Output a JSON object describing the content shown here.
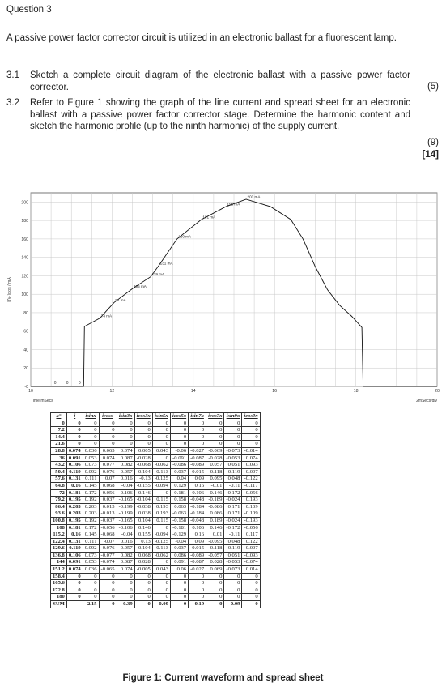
{
  "question_title": "Question 3",
  "intro": "A passive power factor corrector circuit is utilized in an electronic ballast for a fluorescent lamp.",
  "items": [
    {
      "num": "3.1",
      "text": "Sketch a complete circuit diagram of the electronic ballast with a passive power factor corrector.",
      "marks": "(5)"
    },
    {
      "num": "3.2",
      "text": "Refer to Figure 1 showing the graph of the line current and spread sheet for an electronic ballast with a passive power factor corrector stage.  Determine the harmonic content and sketch the harmonic profile (up to the ninth harmonic) of the supply current.",
      "marks": "(9)"
    }
  ],
  "total_marks": "[14]",
  "chart_data": {
    "type": "line",
    "ylabel": "I(V·)pos / mA",
    "xlabel_left": "Time/mSecs",
    "xlabel_right": "2mSecs/div",
    "x_ticks": [
      "10",
      "12",
      "14",
      "16",
      "18",
      "20"
    ],
    "y_ticks": [
      "-0",
      "20",
      "40",
      "60",
      "80",
      "100",
      "120",
      "140",
      "160",
      "180",
      "200"
    ],
    "xlim": [
      10,
      20
    ],
    "ylim": [
      0,
      210
    ],
    "grid": true,
    "zero_labels": [
      "0",
      "0",
      "0"
    ],
    "points": [
      {
        "x": 11.3,
        "y": 0
      },
      {
        "x": 11.32,
        "y": 65
      },
      {
        "x": 11.7,
        "y": 74
      },
      {
        "x": 12.05,
        "y": 91
      },
      {
        "x": 12.5,
        "y": 106
      },
      {
        "x": 12.95,
        "y": 119
      },
      {
        "x": 13.15,
        "y": 131
      },
      {
        "x": 13.6,
        "y": 160
      },
      {
        "x": 14.2,
        "y": 181
      },
      {
        "x": 14.8,
        "y": 195
      },
      {
        "x": 15.3,
        "y": 203
      },
      {
        "x": 15.9,
        "y": 195
      },
      {
        "x": 16.4,
        "y": 181
      },
      {
        "x": 16.7,
        "y": 160
      },
      {
        "x": 17.0,
        "y": 130
      },
      {
        "x": 17.3,
        "y": 105
      },
      {
        "x": 17.6,
        "y": 88
      },
      {
        "x": 17.9,
        "y": 76
      },
      {
        "x": 18.15,
        "y": 64
      },
      {
        "x": 18.18,
        "y": 0
      }
    ],
    "annotations": [
      {
        "x": 15.3,
        "y": 203,
        "label": "203 mA"
      },
      {
        "x": 14.8,
        "y": 195,
        "label": "195 mA"
      },
      {
        "x": 14.2,
        "y": 181,
        "label": "181 mA"
      },
      {
        "x": 13.6,
        "y": 160,
        "label": "160 mA"
      },
      {
        "x": 13.15,
        "y": 131,
        "label": "131 mA"
      },
      {
        "x": 12.95,
        "y": 119,
        "label": "119 mA"
      },
      {
        "x": 12.5,
        "y": 106,
        "label": "106 mA"
      },
      {
        "x": 12.05,
        "y": 91,
        "label": "91 mA"
      },
      {
        "x": 11.7,
        "y": 74,
        "label": "74 mA"
      }
    ]
  },
  "table": {
    "headers": [
      "x°",
      "i",
      "isinx",
      "icosx",
      "isin3x",
      "icos3x",
      "isin5x",
      "icos5x",
      "isin7x",
      "icos7x",
      "isin9x",
      "icos9x"
    ],
    "rows": [
      [
        "0",
        "0",
        "0",
        "0",
        "0",
        "0",
        "0",
        "0",
        "0",
        "0",
        "0",
        "0"
      ],
      [
        "7.2",
        "0",
        "0",
        "0",
        "0",
        "0",
        "0",
        "0",
        "0",
        "0",
        "0",
        "0"
      ],
      [
        "14.4",
        "0",
        "0",
        "0",
        "0",
        "0",
        "0",
        "0",
        "0",
        "0",
        "0",
        "0"
      ],
      [
        "21.6",
        "0",
        "0",
        "0",
        "0",
        "0",
        "0",
        "0",
        "0",
        "0",
        "0",
        "0"
      ],
      [
        "28.8",
        "0.074",
        "0.036",
        "0.065",
        "0.074",
        "0.005",
        "0.043",
        "-0.06",
        "-0.027",
        "-0.069",
        "-0.073",
        "-0.014"
      ],
      [
        "36",
        "0.091",
        "0.053",
        "0.074",
        "0.087",
        "-0.028",
        "0",
        "-0.091",
        "-0.087",
        "-0.028",
        "-0.053",
        "0.074"
      ],
      [
        "43.2",
        "0.106",
        "0.073",
        "0.077",
        "0.082",
        "-0.068",
        "-0.062",
        "-0.086",
        "-0.089",
        "0.057",
        "0.051",
        "0.093"
      ],
      [
        "50.4",
        "0.119",
        "0.092",
        "0.076",
        "0.057",
        "-0.104",
        "-0.113",
        "-0.037",
        "-0.015",
        "0.118",
        "0.119",
        "-0.007"
      ],
      [
        "57.6",
        "0.131",
        "0.111",
        "0.07",
        "0.016",
        "-0.13",
        "-0.125",
        "0.04",
        "0.09",
        "0.095",
        "0.048",
        "-0.122"
      ],
      [
        "64.8",
        "0.16",
        "0.145",
        "0.068",
        "-0.04",
        "-0.155",
        "-0.094",
        "0.129",
        "0.16",
        "-0.01",
        "-0.11",
        "-0.117"
      ],
      [
        "72",
        "0.181",
        "0.172",
        "0.056",
        "-0.106",
        "-0.146",
        "0",
        "0.181",
        "0.106",
        "-0.146",
        "-0.172",
        "0.056"
      ],
      [
        "79.2",
        "0.195",
        "0.192",
        "0.037",
        "-0.165",
        "-0.104",
        "0.115",
        "0.158",
        "-0.048",
        "-0.189",
        "-0.024",
        "0.193"
      ],
      [
        "86.4",
        "0.203",
        "0.203",
        "0.013",
        "-0.199",
        "-0.038",
        "0.193",
        "0.063",
        "-0.184",
        "-0.086",
        "0.171",
        "0.109"
      ],
      [
        "93.6",
        "0.203",
        "0.203",
        "-0.013",
        "-0.199",
        "0.038",
        "0.193",
        "-0.063",
        "-0.184",
        "0.086",
        "0.171",
        "-0.109"
      ],
      [
        "100.8",
        "0.195",
        "0.192",
        "-0.037",
        "-0.165",
        "0.104",
        "0.115",
        "-0.158",
        "-0.048",
        "0.189",
        "-0.024",
        "-0.193"
      ],
      [
        "108",
        "0.181",
        "0.172",
        "-0.056",
        "-0.106",
        "0.146",
        "0",
        "-0.181",
        "0.106",
        "0.146",
        "-0.172",
        "-0.056"
      ],
      [
        "115.2",
        "0.16",
        "0.145",
        "-0.068",
        "-0.04",
        "0.155",
        "-0.094",
        "-0.129",
        "0.16",
        "0.01",
        "-0.11",
        "0.117"
      ],
      [
        "122.4",
        "0.131",
        "0.111",
        "-0.07",
        "0.016",
        "0.13",
        "-0.125",
        "-0.04",
        "0.09",
        "-0.095",
        "0.048",
        "0.122"
      ],
      [
        "129.6",
        "0.119",
        "0.092",
        "-0.076",
        "0.057",
        "0.104",
        "-0.113",
        "0.037",
        "-0.015",
        "-0.118",
        "0.119",
        "0.007"
      ],
      [
        "136.8",
        "0.106",
        "0.073",
        "-0.077",
        "0.082",
        "0.068",
        "-0.062",
        "0.086",
        "-0.089",
        "-0.057",
        "0.051",
        "-0.093"
      ],
      [
        "144",
        "0.091",
        "0.053",
        "-0.074",
        "0.087",
        "0.028",
        "0",
        "0.091",
        "-0.087",
        "0.028",
        "-0.053",
        "-0.074"
      ],
      [
        "151.2",
        "0.074",
        "0.036",
        "-0.065",
        "0.074",
        "-0.005",
        "0.043",
        "0.06",
        "-0.027",
        "0.069",
        "-0.073",
        "0.014"
      ],
      [
        "158.4",
        "0",
        "0",
        "0",
        "0",
        "0",
        "0",
        "0",
        "0",
        "0",
        "0",
        "0"
      ],
      [
        "165.6",
        "0",
        "0",
        "0",
        "0",
        "0",
        "0",
        "0",
        "0",
        "0",
        "0",
        "0"
      ],
      [
        "172.8",
        "0",
        "0",
        "0",
        "0",
        "0",
        "0",
        "0",
        "0",
        "0",
        "0",
        "0"
      ],
      [
        "180",
        "0",
        "0",
        "0",
        "0",
        "0",
        "0",
        "0",
        "0",
        "0",
        "0",
        "0"
      ]
    ],
    "sum_row": [
      "SUM",
      "",
      "2.15",
      "0",
      "-0.39",
      "0",
      "-0.09",
      "0",
      "-0.19",
      "0",
      "-0.09",
      "0"
    ]
  },
  "caption": "Figure 1:  Current waveform and spread sheet"
}
